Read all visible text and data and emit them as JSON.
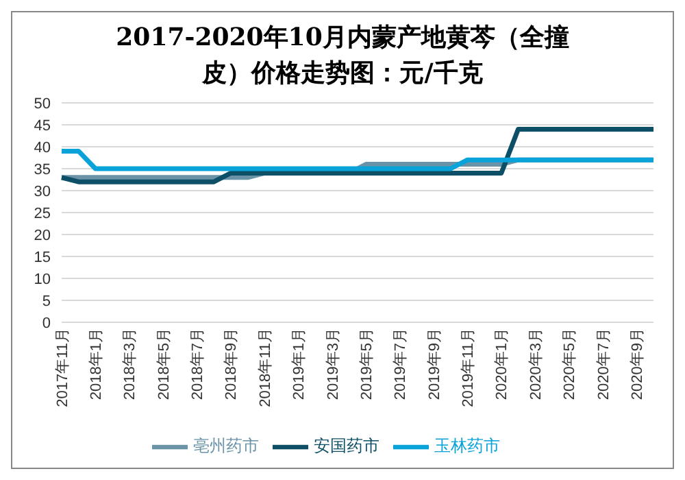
{
  "chart_data": {
    "type": "line",
    "title": "2017-2020年10月内蒙产地黄芩（全撞皮）价格走势图：元/千克",
    "categories": [
      "2017年11月",
      null,
      "2018年1月",
      null,
      "2018年3月",
      null,
      "2018年5月",
      null,
      "2018年7月",
      null,
      "2018年9月",
      null,
      "2018年11月",
      null,
      "2019年1月",
      null,
      "2019年3月",
      null,
      "2019年5月",
      null,
      "2019年7月",
      null,
      "2019年9月",
      null,
      "2019年11月",
      null,
      "2020年1月",
      null,
      "2020年3月",
      null,
      "2020年5月",
      null,
      "2020年7月",
      null,
      "2020年9月",
      null
    ],
    "series": [
      {
        "name": "亳州药市",
        "color": "#6a93a8",
        "values": [
          33,
          33,
          33,
          33,
          33,
          33,
          33,
          33,
          33,
          33,
          33,
          33,
          34,
          34,
          34,
          34,
          34,
          34,
          36,
          36,
          36,
          36,
          36,
          36,
          36,
          36,
          36,
          37,
          37,
          37,
          37,
          37,
          37,
          37,
          37,
          37
        ]
      },
      {
        "name": "安国药市",
        "color": "#0d4f66",
        "values": [
          33,
          32,
          32,
          32,
          32,
          32,
          32,
          32,
          32,
          32,
          34,
          34,
          34,
          34,
          34,
          34,
          34,
          34,
          34,
          34,
          34,
          34,
          34,
          34,
          34,
          34,
          34,
          44,
          44,
          44,
          44,
          44,
          44,
          44,
          44,
          44
        ]
      },
      {
        "name": "玉林药市",
        "color": "#0aa3d9",
        "values": [
          39,
          39,
          35,
          35,
          35,
          35,
          35,
          35,
          35,
          35,
          35,
          35,
          35,
          35,
          35,
          35,
          35,
          35,
          35,
          35,
          35,
          35,
          35,
          35,
          37,
          37,
          37,
          37,
          37,
          37,
          37,
          37,
          37,
          37,
          37,
          37
        ]
      }
    ],
    "ylim": [
      0,
      50
    ],
    "yticks": [
      0,
      5,
      10,
      15,
      20,
      25,
      30,
      35,
      40,
      45,
      50
    ],
    "grid": "y",
    "legend": "bottom",
    "marker": "none",
    "line_style": "solid"
  }
}
